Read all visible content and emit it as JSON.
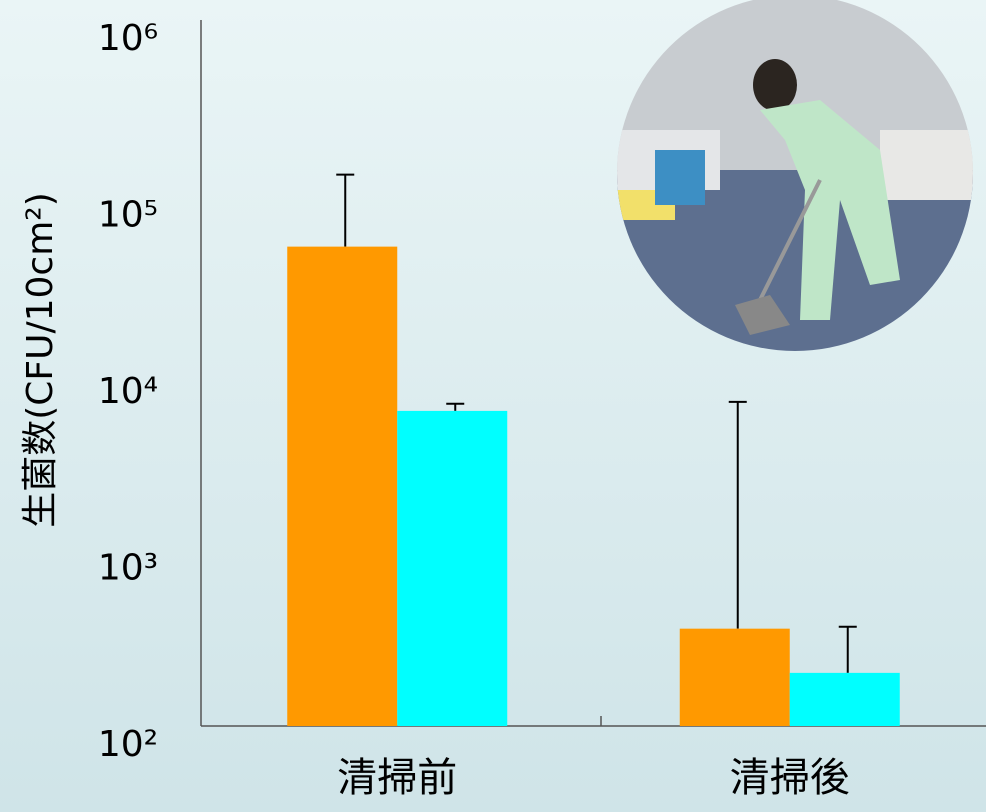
{
  "chart_data": {
    "type": "bar",
    "y_label": "生菌数(CFU/10cm²)",
    "categories": [
      "清掃前",
      "清掃後"
    ],
    "series": [
      {
        "color": "#ff9900",
        "values": [
          52000,
          356
        ],
        "errors": [
          81000,
          6500
        ]
      },
      {
        "color": "#00ffff",
        "values": [
          6100,
          200
        ],
        "errors": [
          600,
          165
        ]
      }
    ],
    "yscale": "log",
    "ylim": [
      100,
      1000000
    ],
    "yticks": [
      {
        "value": 100,
        "label": "10²"
      },
      {
        "value": 1000,
        "label": "10³"
      },
      {
        "value": 10000,
        "label": "10⁴"
      },
      {
        "value": 100000,
        "label": "10⁵"
      },
      {
        "value": 1000000,
        "label": "10⁶"
      }
    ]
  }
}
